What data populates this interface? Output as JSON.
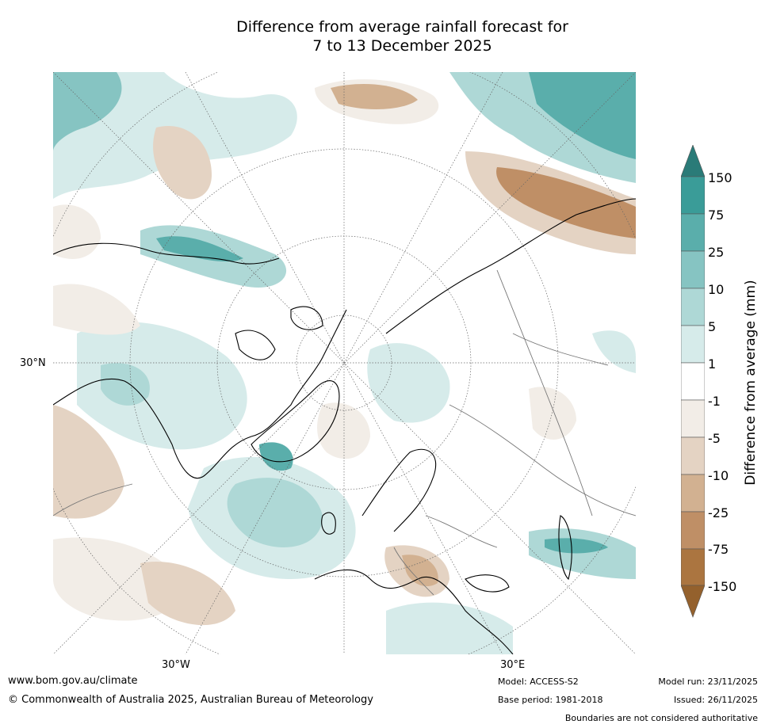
{
  "title": {
    "line1": "Difference from average rainfall forecast for",
    "line2": "7 to 13 December 2025"
  },
  "map": {
    "projection": "north-polar-stereographic",
    "lat_label_left": "30°N",
    "lon_labels_bottom": [
      "30°W",
      "30°E"
    ]
  },
  "colorbar": {
    "title": "Difference from average (mm)",
    "levels": [
      "150",
      "75",
      "25",
      "10",
      "5",
      "1",
      "-1",
      "-5",
      "-10",
      "-25",
      "-75",
      "-150"
    ],
    "colors": {
      "above_150": "#2a7b78",
      "75_150": "#3a9c98",
      "25_75": "#5aaeab",
      "10_25": "#86c4c2",
      "5_10": "#aed8d6",
      "1_5": "#d6ebea",
      "m1_1": "#ffffff",
      "m5_m1": "#f2ede7",
      "m10_m5": "#e4d3c3",
      "m25_m10": "#d2b191",
      "m75_m25": "#bf8f66",
      "m150_m75": "#ab7540",
      "below_m150": "#94612d"
    }
  },
  "footer": {
    "website": "www.bom.gov.au/climate",
    "copyright": "© Commonwealth of Australia 2025, Australian Bureau of Meteorology",
    "model": "Model: ACCESS-S2",
    "base_period": "Base period: 1981-2018",
    "model_run": "Model run: 23/11/2025",
    "issued": "Issued: 26/11/2025",
    "boundaries_note": "Boundaries are not considered authoritative"
  }
}
